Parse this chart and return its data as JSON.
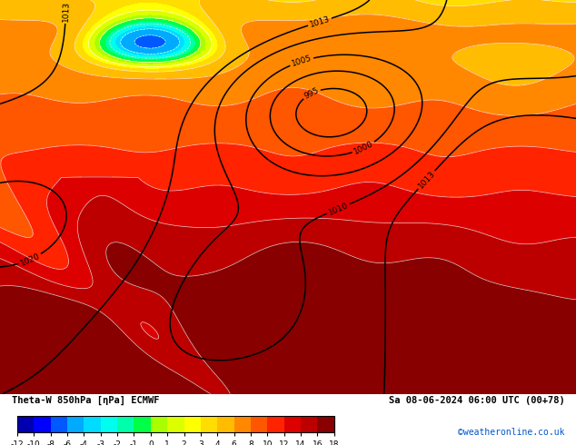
{
  "title_left": "Theta-W 850hPa [ηPa] ECMWF",
  "title_right": "Sa 08-06-2024 06:00 UTC (00+78)",
  "credit": "©weatheronline.co.uk",
  "colorbar_levels": [
    -12,
    -10,
    -8,
    -6,
    -4,
    -3,
    -2,
    -1,
    0,
    1,
    2,
    3,
    4,
    6,
    8,
    10,
    12,
    14,
    16,
    18
  ],
  "colorbar_colors": [
    "#0000b0",
    "#0000ff",
    "#005aff",
    "#00aaff",
    "#00ddff",
    "#00ffee",
    "#00ffaa",
    "#00ff44",
    "#aaff00",
    "#ddff00",
    "#ffff00",
    "#ffdd00",
    "#ffbb00",
    "#ff8800",
    "#ff5500",
    "#ff2200",
    "#dd0000",
    "#bb0000",
    "#880000"
  ],
  "bg_color": "#ffffff",
  "figsize": [
    6.34,
    4.9
  ],
  "dpi": 100
}
